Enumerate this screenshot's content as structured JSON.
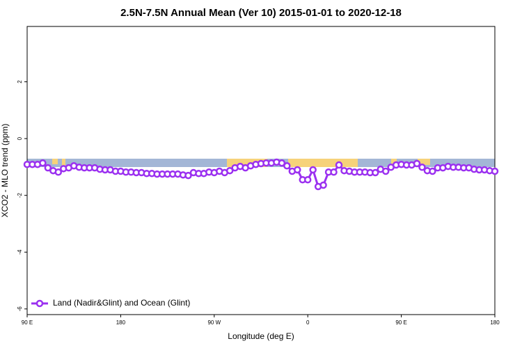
{
  "chart_data": {
    "type": "line",
    "title": "2.5N-7.5N Annual Mean (Ver 10)   2015-01-01 to 2020-12-18",
    "x_label": "Longitude (deg E)",
    "y_label": "XCO2 - MLO trend (ppm)",
    "x": [
      90,
      95,
      100,
      105,
      110,
      115,
      120,
      125,
      130,
      135,
      140,
      145,
      150,
      155,
      160,
      165,
      170,
      175,
      180,
      185,
      190,
      195,
      200,
      205,
      210,
      215,
      220,
      225,
      230,
      235,
      240,
      245,
      250,
      255,
      260,
      265,
      270,
      275,
      280,
      285,
      290,
      295,
      300,
      305,
      310,
      315,
      320,
      325,
      330,
      335,
      340,
      345,
      350,
      355,
      360,
      365,
      370,
      375,
      380,
      385,
      390,
      395,
      400,
      405,
      410,
      415,
      420,
      425,
      430,
      435,
      440,
      445,
      450,
      455,
      460,
      465,
      470,
      475,
      480,
      485,
      490,
      495,
      500,
      505,
      510,
      515,
      520,
      525,
      530,
      535,
      540
    ],
    "series": [
      {
        "name": "Land (Nadir&Glint) and Ocean (Glint)",
        "color": "#9b30f0",
        "values": [
          -0.91,
          -0.91,
          -0.91,
          -0.86,
          -1.03,
          -1.13,
          -1.18,
          -1.06,
          -1.03,
          -0.96,
          -1.01,
          -1.03,
          -1.03,
          -1.03,
          -1.08,
          -1.1,
          -1.1,
          -1.15,
          -1.15,
          -1.18,
          -1.18,
          -1.2,
          -1.2,
          -1.23,
          -1.23,
          -1.25,
          -1.25,
          -1.25,
          -1.25,
          -1.25,
          -1.28,
          -1.3,
          -1.2,
          -1.23,
          -1.23,
          -1.18,
          -1.2,
          -1.15,
          -1.2,
          -1.13,
          -1.03,
          -0.98,
          -1.03,
          -0.96,
          -0.91,
          -0.88,
          -0.86,
          -0.86,
          -0.83,
          -0.86,
          -0.96,
          -1.15,
          -1.1,
          -1.45,
          -1.45,
          -1.1,
          -1.69,
          -1.64,
          -1.18,
          -1.18,
          -0.93,
          -1.13,
          -1.15,
          -1.18,
          -1.18,
          -1.18,
          -1.2,
          -1.2,
          -1.08,
          -1.15,
          -1.01,
          -0.93,
          -0.91,
          -0.93,
          -0.93,
          -0.88,
          -1.01,
          -1.13,
          -1.15,
          -1.03,
          -1.03,
          -0.98,
          -1.01,
          -1.01,
          -1.03,
          -1.03,
          -1.08,
          -1.1,
          -1.1,
          -1.13,
          -1.15
        ]
      }
    ],
    "xlim": [
      90,
      540
    ],
    "xticks": [
      {
        "value": 90,
        "label": "90 E"
      },
      180,
      {
        "value": 270,
        "label": "90 W"
      },
      {
        "value": 360,
        "label": "0"
      },
      {
        "value": 450,
        "label": "90 E"
      },
      {
        "value": 540,
        "label": "180"
      }
    ],
    "ylim": [
      -6.2,
      3.95
    ],
    "yticks": [
      -6,
      -4,
      -2,
      0,
      2
    ],
    "legend": "bottom-left"
  }
}
